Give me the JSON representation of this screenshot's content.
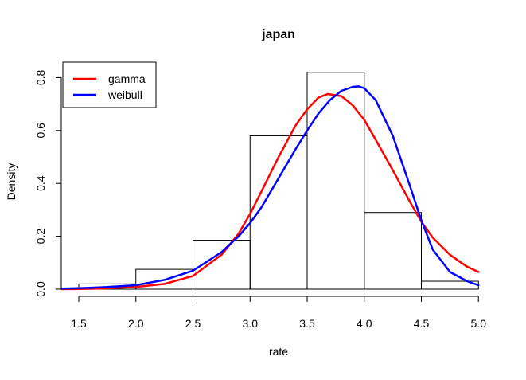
{
  "chart_data": {
    "type": "histogram",
    "title": "japan",
    "xlabel": "rate",
    "ylabel": "Density",
    "xlim": [
      1.35,
      5.0
    ],
    "ylim": [
      0,
      0.82
    ],
    "x_ticks": [
      "1.5",
      "2.0",
      "2.5",
      "3.0",
      "3.5",
      "4.0",
      "4.5",
      "5.0"
    ],
    "y_ticks": [
      "0.0",
      "0.2",
      "0.4",
      "0.6",
      "0.8"
    ],
    "grid": false,
    "legend_position": "top-left",
    "bins": [
      {
        "x0": 1.5,
        "x1": 2.0,
        "density": 0.02
      },
      {
        "x0": 2.0,
        "x1": 2.5,
        "density": 0.075
      },
      {
        "x0": 2.5,
        "x1": 3.0,
        "density": 0.185
      },
      {
        "x0": 3.0,
        "x1": 3.5,
        "density": 0.58
      },
      {
        "x0": 3.5,
        "x1": 4.0,
        "density": 0.82
      },
      {
        "x0": 4.0,
        "x1": 4.5,
        "density": 0.29
      },
      {
        "x0": 4.5,
        "x1": 5.0,
        "density": 0.03
      }
    ],
    "series": [
      {
        "name": "gamma",
        "color": "#ff0000",
        "x": [
          1.35,
          1.5,
          1.75,
          2.0,
          2.25,
          2.5,
          2.75,
          2.9,
          3.0,
          3.1,
          3.25,
          3.4,
          3.5,
          3.6,
          3.68,
          3.8,
          3.9,
          4.0,
          4.1,
          4.25,
          4.4,
          4.5,
          4.6,
          4.75,
          4.9,
          5.0
        ],
        "y": [
          0.0,
          0.001,
          0.003,
          0.008,
          0.02,
          0.05,
          0.13,
          0.21,
          0.285,
          0.37,
          0.5,
          0.62,
          0.68,
          0.725,
          0.738,
          0.73,
          0.695,
          0.64,
          0.565,
          0.45,
          0.33,
          0.255,
          0.195,
          0.13,
          0.085,
          0.065
        ]
      },
      {
        "name": "weibull",
        "color": "#0000ff",
        "x": [
          1.35,
          1.5,
          1.75,
          2.0,
          2.25,
          2.5,
          2.75,
          2.9,
          3.0,
          3.1,
          3.25,
          3.4,
          3.5,
          3.6,
          3.7,
          3.8,
          3.9,
          3.95,
          4.0,
          4.1,
          4.25,
          4.4,
          4.5,
          4.6,
          4.75,
          4.9,
          5.0
        ],
        "y": [
          0.002,
          0.004,
          0.008,
          0.015,
          0.035,
          0.07,
          0.14,
          0.2,
          0.25,
          0.31,
          0.42,
          0.53,
          0.6,
          0.665,
          0.715,
          0.75,
          0.765,
          0.767,
          0.76,
          0.715,
          0.58,
          0.39,
          0.26,
          0.15,
          0.065,
          0.03,
          0.015
        ]
      }
    ]
  }
}
